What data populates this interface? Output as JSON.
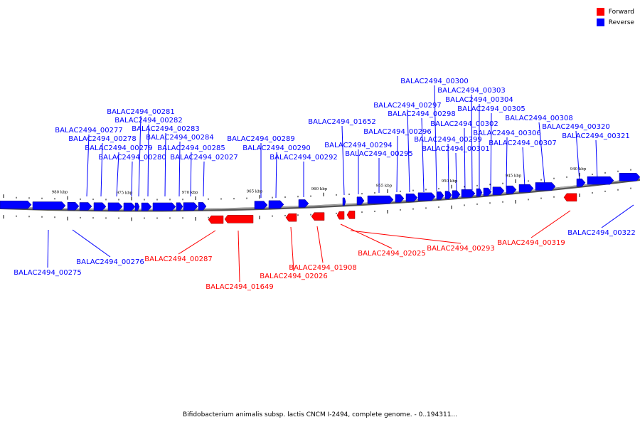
{
  "title": "Bifidobacterium animalis subsp. lactis CNCM I-2494, complete genome. - 0..194311...",
  "legend": [
    {
      "label": "Forward",
      "color": "#ff0000"
    },
    {
      "label": "Reverse",
      "color": "#0000ff"
    }
  ],
  "colors": {
    "forward": "#ff0000",
    "reverse": "#0000ff",
    "backbone": "#808080"
  },
  "kbp_labels": [
    "980 kbp",
    "975 kbp",
    "970 kbp",
    "965 kbp",
    "960 kbp",
    "955 kbp",
    "950 kbp",
    "945 kbp",
    "940 kbp"
  ],
  "reverse_genes": [
    "BALAC2494_00275",
    "BALAC2494_00276",
    "BALAC2494_00277",
    "BALAC2494_00278",
    "BALAC2494_00279",
    "BALAC2494_00280",
    "BALAC2494_00281",
    "BALAC2494_00282",
    "BALAC2494_00283",
    "BALAC2494_00284",
    "BALAC2494_00285",
    "BALAC2494_02027",
    "BALAC2494_00289",
    "BALAC2494_00290",
    "BALAC2494_00292",
    "BALAC2494_01652",
    "BALAC2494_00294",
    "BALAC2494_00295",
    "BALAC2494_00296",
    "BALAC2494_00297",
    "BALAC2494_00298",
    "BALAC2494_00299",
    "BALAC2494_00300",
    "BALAC2494_00301",
    "BALAC2494_00302",
    "BALAC2494_00303",
    "BALAC2494_00304",
    "BALAC2494_00305",
    "BALAC2494_00306",
    "BALAC2494_00307",
    "BALAC2494_00308",
    "BALAC2494_00320",
    "BALAC2494_00321",
    "BALAC2494_00322"
  ],
  "forward_genes": [
    "BALAC2494_00287",
    "BALAC2494_01649",
    "BALAC2494_02026",
    "BALAC2494_01908",
    "BALAC2494_02025",
    "BALAC2494_00293",
    "BALAC2494_00319"
  ]
}
